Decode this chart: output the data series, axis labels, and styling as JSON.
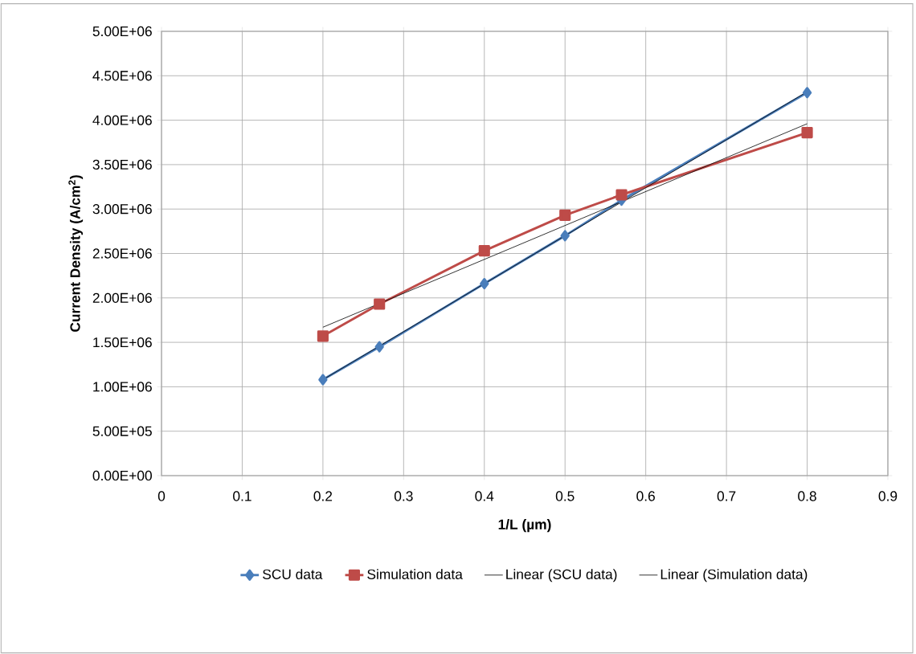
{
  "chart_data": {
    "type": "line",
    "xlabel": "1/L (µm)",
    "ylabel": "Current Density (A/cm$^{2}$)",
    "series": [
      {
        "name": "SCU data",
        "color": "#4a7ebb",
        "marker": "diamond",
        "x": [
          0.2,
          0.27,
          0.4,
          0.5,
          0.57,
          0.8
        ],
        "values": [
          1080000,
          1450000,
          2160000,
          2700000,
          3100000,
          4310000
        ]
      },
      {
        "name": "Simulation data",
        "color": "#be4b48",
        "marker": "square",
        "x": [
          0.2,
          0.27,
          0.4,
          0.5,
          0.57,
          0.8
        ],
        "values": [
          1570000,
          1930000,
          2530000,
          2930000,
          3160000,
          3860000
        ]
      },
      {
        "name": "Linear (SCU data)",
        "color": "#000000",
        "marker": "none",
        "x": [
          0.2,
          0.8
        ],
        "values": [
          1080000,
          4320000
        ]
      },
      {
        "name": "Linear (Simulation data)",
        "color": "#000000",
        "marker": "none",
        "x": [
          0.2,
          0.8
        ],
        "values": [
          1670000,
          3960000
        ]
      }
    ],
    "xlim": [
      0,
      0.9
    ],
    "xticks": [
      0,
      0.1,
      0.2,
      0.3,
      0.4,
      0.5,
      0.6,
      0.7,
      0.8,
      0.9
    ],
    "ylim": [
      0,
      5000000
    ],
    "yticks": [
      {
        "value": 0,
        "label": "0.00E+00"
      },
      {
        "value": 500000,
        "label": "5.00E+05"
      },
      {
        "value": 1000000,
        "label": "1.00E+06"
      },
      {
        "value": 1500000,
        "label": "1.50E+06"
      },
      {
        "value": 2000000,
        "label": "2.00E+06"
      },
      {
        "value": 2500000,
        "label": "2.50E+06"
      },
      {
        "value": 3000000,
        "label": "3.00E+06"
      },
      {
        "value": 3500000,
        "label": "3.50E+06"
      },
      {
        "value": 4000000,
        "label": "4.00E+06"
      },
      {
        "value": 4500000,
        "label": "4.50E+06"
      },
      {
        "value": 5000000,
        "label": "5.00E+06"
      }
    ],
    "grid": true,
    "legend": "bottom",
    "line_style": "solid"
  }
}
